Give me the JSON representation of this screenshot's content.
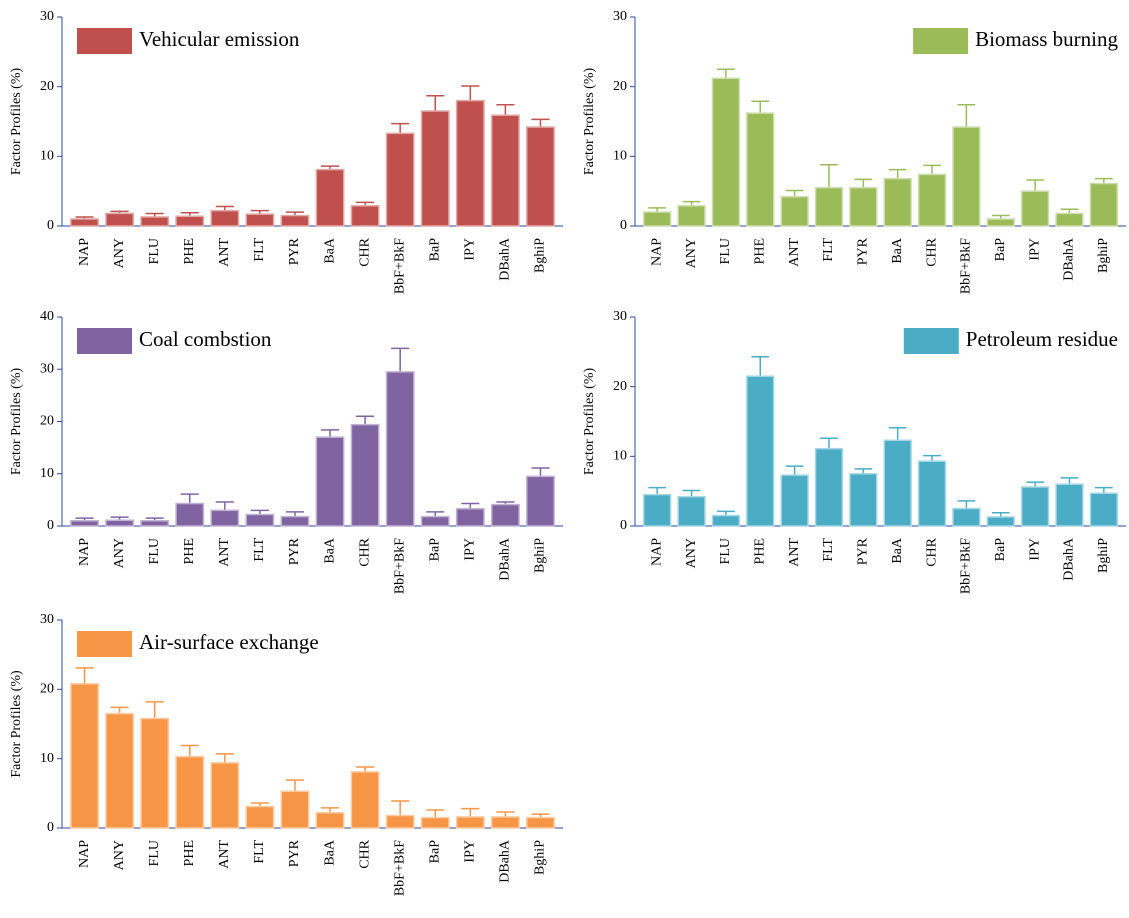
{
  "chart_data": [
    {
      "type": "bar",
      "y_label": "Factor Profiles (%)",
      "legend": "upper left",
      "ylim": [
        0,
        30
      ],
      "yticks": [
        0,
        10,
        20,
        30
      ],
      "categories": [
        "NAP",
        "ANY",
        "FLU",
        "PHE",
        "ANT",
        "FLT",
        "PYR",
        "BaA",
        "CHR",
        "BbF+BkF",
        "BaP",
        "IPY",
        "DBahA",
        "BghiP"
      ],
      "series": [
        {
          "name": "Vehicular emission",
          "color": "#c0504d",
          "values": [
            1.0,
            1.8,
            1.3,
            1.4,
            2.2,
            1.7,
            1.5,
            8.1,
            2.9,
            13.3,
            16.5,
            18.0,
            15.9,
            14.2
          ],
          "errors": [
            0.3,
            0.3,
            0.5,
            0.5,
            0.6,
            0.5,
            0.5,
            0.5,
            0.5,
            1.4,
            2.2,
            2.1,
            1.5,
            1.1
          ]
        }
      ]
    },
    {
      "type": "bar",
      "y_label": "Factor Profiles (%)",
      "legend": "upper right",
      "ylim": [
        0,
        30
      ],
      "yticks": [
        0,
        10,
        20,
        30
      ],
      "categories": [
        "NAP",
        "ANY",
        "FLU",
        "PHE",
        "ANT",
        "FLT",
        "PYR",
        "BaA",
        "CHR",
        "BbF+BkF",
        "BaP",
        "IPY",
        "DBahA",
        "BghiP"
      ],
      "series": [
        {
          "name": "Biomass burning",
          "color": "#9bbb59",
          "values": [
            2.0,
            2.9,
            21.2,
            16.2,
            4.2,
            5.5,
            5.5,
            6.8,
            7.4,
            14.2,
            1.0,
            5.0,
            1.8,
            6.1
          ],
          "errors": [
            0.6,
            0.6,
            1.3,
            1.7,
            0.9,
            3.3,
            1.2,
            1.3,
            1.3,
            3.2,
            0.5,
            1.6,
            0.6,
            0.7
          ]
        }
      ]
    },
    {
      "type": "bar",
      "y_label": "Factor Profiles  (%)",
      "legend": "upper left",
      "ylim": [
        0,
        40
      ],
      "yticks": [
        0,
        10,
        20,
        30,
        40
      ],
      "categories": [
        "NAP",
        "ANY",
        "FLU",
        "PHE",
        "ANT",
        "FLT",
        "PYR",
        "BaA",
        "CHR",
        "BbF+BkF",
        "BaP",
        "IPY",
        "DBahA",
        "BghiP"
      ],
      "series": [
        {
          "name": "Coal combstion",
          "color": "#8064a2",
          "values": [
            1.0,
            1.1,
            1.0,
            4.3,
            3.0,
            2.2,
            1.8,
            17.0,
            19.4,
            29.5,
            1.8,
            3.3,
            4.1,
            9.5
          ],
          "errors": [
            0.5,
            0.6,
            0.5,
            1.8,
            1.6,
            0.8,
            0.9,
            1.4,
            1.6,
            4.5,
            0.9,
            1.0,
            0.5,
            1.6
          ]
        }
      ]
    },
    {
      "type": "bar",
      "y_label": "Factor Profiles (%)",
      "legend": "upper right",
      "ylim": [
        0,
        30
      ],
      "yticks": [
        0,
        10,
        20,
        30
      ],
      "categories": [
        "NAP",
        "ANY",
        "FLU",
        "PHE",
        "ANT",
        "FLT",
        "PYR",
        "BaA",
        "CHR",
        "BbF+BkF",
        "BaP",
        "IPY",
        "DBahA",
        "BghiP"
      ],
      "series": [
        {
          "name": "Petroleum residue",
          "color": "#4bacc6",
          "values": [
            4.5,
            4.2,
            1.5,
            21.5,
            7.3,
            11.1,
            7.5,
            12.3,
            9.3,
            2.5,
            1.3,
            5.6,
            6.0,
            4.7
          ],
          "errors": [
            1.0,
            0.9,
            0.6,
            2.8,
            1.3,
            1.5,
            0.7,
            1.8,
            0.8,
            1.1,
            0.6,
            0.7,
            0.9,
            0.8
          ]
        }
      ]
    },
    {
      "type": "bar",
      "y_label": "Factor Profiles (%)",
      "legend": "upper left",
      "ylim": [
        0,
        30
      ],
      "yticks": [
        0,
        10,
        20,
        30
      ],
      "categories": [
        "NAP",
        "ANY",
        "FLU",
        "PHE",
        "ANT",
        "FLT",
        "PYR",
        "BaA",
        "CHR",
        "BbF+BkF",
        "BaP",
        "IPY",
        "DBahA",
        "BghiP"
      ],
      "series": [
        {
          "name": "Air-surface exchange",
          "color": "#f79646",
          "values": [
            20.8,
            16.5,
            15.8,
            10.3,
            9.4,
            3.1,
            5.3,
            2.2,
            8.1,
            1.8,
            1.5,
            1.6,
            1.6,
            1.5
          ],
          "errors": [
            2.3,
            0.9,
            2.4,
            1.6,
            1.3,
            0.5,
            1.6,
            0.7,
            0.7,
            2.1,
            1.1,
            1.2,
            0.7,
            0.5
          ]
        }
      ]
    }
  ]
}
